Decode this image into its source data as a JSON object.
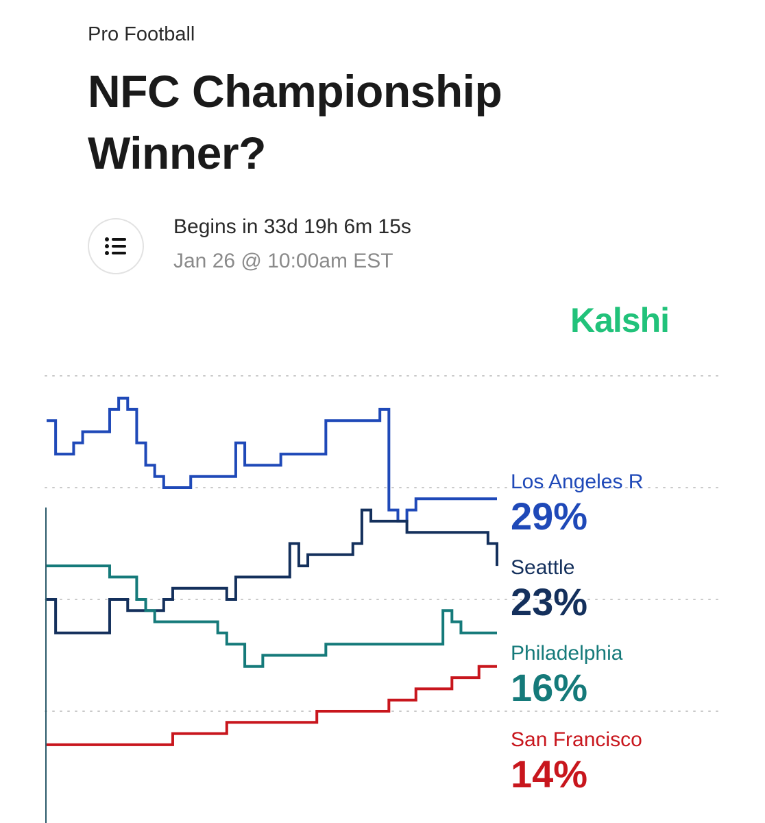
{
  "header": {
    "category": "Pro Football",
    "title": "NFC Championship Winner?",
    "countdown": "Begins in 33d 19h 6m 15s",
    "start_time": "Jan 26 @ 10:00am EST",
    "brand": "Kalshi",
    "brand_color": "#21c27a",
    "rules_icon": "list-icon"
  },
  "chart_data": {
    "type": "line",
    "x": [
      0,
      2,
      4,
      6,
      8,
      10,
      12,
      14,
      16,
      18,
      20,
      22,
      24,
      26,
      28,
      30,
      32,
      34,
      36,
      38,
      40,
      42,
      44,
      46,
      48,
      50,
      52,
      54,
      56,
      58,
      60,
      62,
      64,
      66,
      68,
      70,
      72,
      74,
      76,
      78,
      80,
      82,
      84,
      86,
      88,
      90,
      92,
      94,
      96,
      98,
      100
    ],
    "ylim": [
      0,
      40
    ],
    "grid": true,
    "series": [
      {
        "name": "Los Angeles R",
        "value_label": "29%",
        "color": "#1f49b8",
        "values": [
          36,
          33,
          33,
          34,
          35,
          35,
          35,
          37,
          38,
          37,
          34,
          32,
          31,
          30,
          30,
          30,
          31,
          31,
          31,
          31,
          31,
          34,
          32,
          32,
          32,
          32,
          33,
          33,
          33,
          33,
          33,
          36,
          36,
          36,
          36,
          36,
          36,
          37,
          28,
          27,
          28,
          29,
          29,
          29,
          29,
          29,
          29,
          29,
          29,
          29,
          29
        ]
      },
      {
        "name": "Seattle",
        "value_label": "23%",
        "color": "#14305c",
        "values": [
          20,
          17,
          17,
          17,
          17,
          17,
          17,
          20,
          20,
          19,
          19,
          19,
          19,
          20,
          21,
          21,
          21,
          21,
          21,
          21,
          20,
          22,
          22,
          22,
          22,
          22,
          22,
          25,
          23,
          24,
          24,
          24,
          24,
          24,
          25,
          28,
          27,
          27,
          27,
          27,
          26,
          26,
          26,
          26,
          26,
          26,
          26,
          26,
          26,
          25,
          23
        ]
      },
      {
        "name": "Philadelphia",
        "value_label": "16%",
        "color": "#157a7a",
        "values": [
          23,
          23,
          23,
          23,
          23,
          23,
          23,
          22,
          22,
          22,
          20,
          19,
          18,
          18,
          18,
          18,
          18,
          18,
          18,
          17,
          16,
          16,
          14,
          14,
          15,
          15,
          15,
          15,
          15,
          15,
          15,
          16,
          16,
          16,
          16,
          16,
          16,
          16,
          16,
          16,
          16,
          16,
          16,
          16,
          19,
          18,
          17,
          17,
          17,
          17,
          17
        ]
      },
      {
        "name": "San Francisco",
        "value_label": "14%",
        "color": "#c8161d",
        "values": [
          7,
          7,
          7,
          7,
          7,
          7,
          7,
          7,
          7,
          7,
          7,
          7,
          7,
          7,
          8,
          8,
          8,
          8,
          8,
          8,
          9,
          9,
          9,
          9,
          9,
          9,
          9,
          9,
          9,
          9,
          10,
          10,
          10,
          10,
          10,
          10,
          10,
          10,
          11,
          11,
          11,
          12,
          12,
          12,
          12,
          13,
          13,
          13,
          14,
          14,
          14
        ]
      }
    ]
  }
}
